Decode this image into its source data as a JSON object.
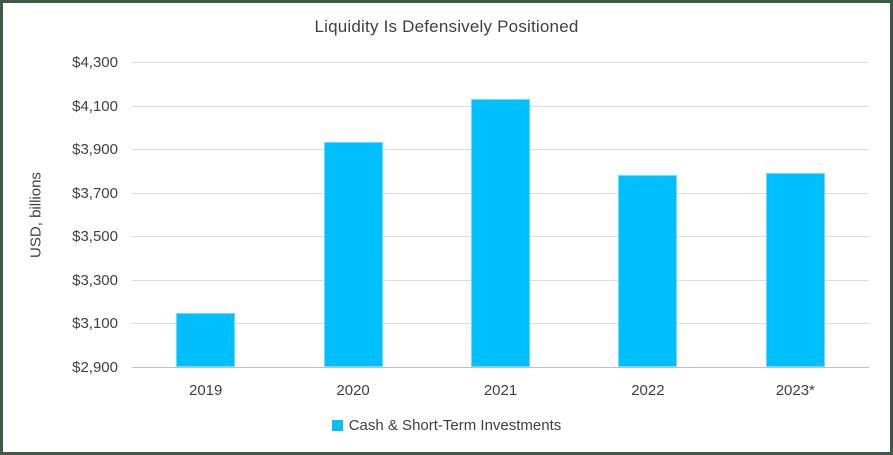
{
  "frame": {
    "border_color": "#3d5a45",
    "background": "#ffffff"
  },
  "chart_data": {
    "type": "bar",
    "title": "Liquidity Is Defensively Positioned",
    "xlabel": "",
    "ylabel": "USD, billions",
    "categories": [
      "2019",
      "2020",
      "2021",
      "2022",
      "2023*"
    ],
    "series": [
      {
        "name": "Cash & Short-Term Investments",
        "values": [
          3150,
          3935,
          4130,
          3780,
          3790
        ]
      }
    ],
    "ylim": [
      2900,
      4300
    ],
    "yticks": [
      {
        "value": 2900,
        "label": "$2,900"
      },
      {
        "value": 3100,
        "label": "$3,100"
      },
      {
        "value": 3300,
        "label": "$3,300"
      },
      {
        "value": 3500,
        "label": "$3,500"
      },
      {
        "value": 3700,
        "label": "$3,700"
      },
      {
        "value": 3900,
        "label": "$3,900"
      },
      {
        "value": 4100,
        "label": "$4,100"
      },
      {
        "value": 4300,
        "label": "$4,300"
      }
    ],
    "grid": true,
    "legend_position": "bottom",
    "colors": {
      "bar": "#00bfff",
      "gridline": "#dcdcdc",
      "axis_line": "#bfbfbf",
      "text": "#404040"
    }
  }
}
